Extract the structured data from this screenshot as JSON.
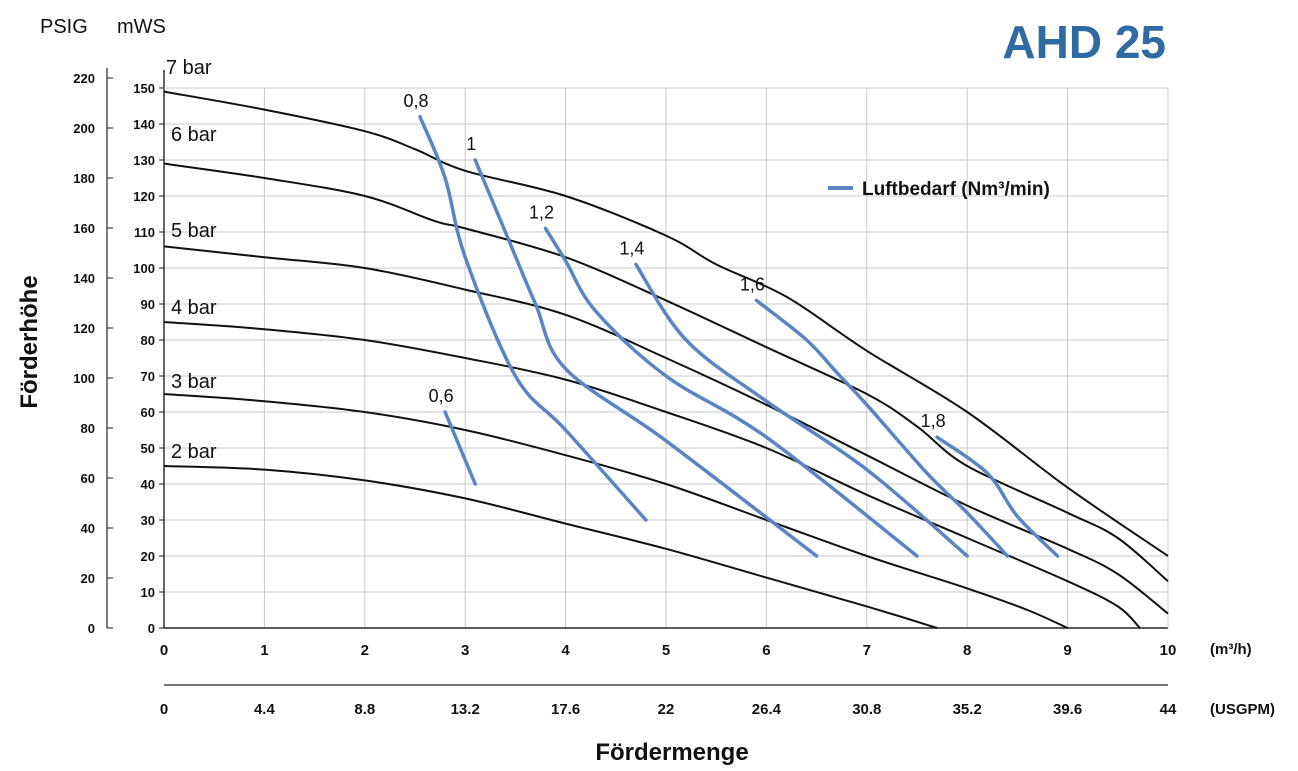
{
  "chart_data": {
    "type": "line",
    "title": "AHD 25",
    "xlabel": "Fördermenge",
    "ylabel": "Förderhöhe",
    "x_unit_label": "(m³/h)",
    "x2_unit_label": "(USGPM)",
    "y_unit_left": "PSIG",
    "y_unit_right": "mWS",
    "xlim": [
      0,
      10
    ],
    "ylim": [
      0,
      150
    ],
    "grid": true,
    "legend_position": "top-right",
    "x_ticks": [
      "0",
      "1",
      "2",
      "3",
      "4",
      "5",
      "6",
      "7",
      "8",
      "9",
      "10"
    ],
    "x2_ticks": [
      "0",
      "4.4",
      "8.8",
      "13.2",
      "17.6",
      "22",
      "26.4",
      "30.8",
      "35.2",
      "39.6",
      "44"
    ],
    "y_ticks_mws": [
      "0",
      "10",
      "20",
      "30",
      "40",
      "50",
      "60",
      "70",
      "80",
      "90",
      "100",
      "110",
      "120",
      "130",
      "140",
      "150"
    ],
    "y_ticks_psig": [
      "0",
      "20",
      "40",
      "60",
      "80",
      "100",
      "120",
      "140",
      "160",
      "180",
      "200",
      "220"
    ],
    "legend": {
      "label": "Luftbedarf (Nm³/min)",
      "color": "#5b84c4"
    },
    "series": [
      {
        "name": "7 bar",
        "points": [
          [
            0,
            149
          ],
          [
            1,
            144
          ],
          [
            2,
            138
          ],
          [
            2.5,
            133
          ],
          [
            3,
            127
          ],
          [
            4,
            120
          ],
          [
            5,
            109
          ],
          [
            5.5,
            101
          ],
          [
            6.2,
            92
          ],
          [
            7,
            77
          ],
          [
            8,
            60
          ],
          [
            9,
            39
          ],
          [
            10,
            20
          ]
        ]
      },
      {
        "name": "6 bar",
        "points": [
          [
            0,
            129
          ],
          [
            1,
            125
          ],
          [
            2,
            120
          ],
          [
            2.7,
            113
          ],
          [
            3,
            111
          ],
          [
            4,
            103
          ],
          [
            5,
            91
          ],
          [
            6,
            78
          ],
          [
            7,
            65
          ],
          [
            7.5,
            56
          ],
          [
            8,
            45
          ],
          [
            9,
            32
          ],
          [
            9.5,
            25
          ],
          [
            10,
            13
          ]
        ]
      },
      {
        "name": "5 bar",
        "points": [
          [
            0,
            106
          ],
          [
            1,
            103
          ],
          [
            2,
            100
          ],
          [
            3,
            94
          ],
          [
            4,
            87
          ],
          [
            5,
            75
          ],
          [
            6,
            62
          ],
          [
            7,
            48
          ],
          [
            8,
            34
          ],
          [
            9,
            22
          ],
          [
            9.5,
            15
          ],
          [
            10,
            4
          ]
        ]
      },
      {
        "name": "4 bar",
        "points": [
          [
            0,
            85
          ],
          [
            1,
            83
          ],
          [
            2,
            80
          ],
          [
            3,
            75
          ],
          [
            4,
            69
          ],
          [
            5,
            60
          ],
          [
            6,
            50
          ],
          [
            7,
            37
          ],
          [
            8,
            25
          ],
          [
            9,
            13
          ],
          [
            9.5,
            6
          ],
          [
            9.72,
            0
          ]
        ]
      },
      {
        "name": "3 bar",
        "points": [
          [
            0,
            65
          ],
          [
            1,
            63
          ],
          [
            2,
            60
          ],
          [
            3,
            55
          ],
          [
            4,
            48
          ],
          [
            5,
            40
          ],
          [
            6,
            30
          ],
          [
            7,
            20
          ],
          [
            8,
            11
          ],
          [
            8.6,
            5
          ],
          [
            9,
            0
          ]
        ]
      },
      {
        "name": "2 bar",
        "points": [
          [
            0,
            45
          ],
          [
            1,
            44
          ],
          [
            2,
            41
          ],
          [
            3,
            36
          ],
          [
            4,
            29
          ],
          [
            5,
            22
          ],
          [
            6,
            14
          ],
          [
            7,
            6
          ],
          [
            7.7,
            0
          ]
        ]
      }
    ],
    "air_series": [
      {
        "name": "0,6",
        "points": [
          [
            2.8,
            60
          ],
          [
            3.1,
            40
          ]
        ]
      },
      {
        "name": "0,8",
        "points": [
          [
            2.55,
            142
          ],
          [
            2.8,
            125
          ],
          [
            3.0,
            103
          ],
          [
            3.5,
            70
          ],
          [
            4,
            55
          ],
          [
            4.8,
            30
          ]
        ]
      },
      {
        "name": "1",
        "points": [
          [
            3.1,
            130
          ],
          [
            3.4,
            110
          ],
          [
            3.7,
            90
          ],
          [
            4,
            72
          ],
          [
            5,
            52
          ],
          [
            6.5,
            20
          ]
        ]
      },
      {
        "name": "1,2",
        "points": [
          [
            3.8,
            111
          ],
          [
            4,
            102
          ],
          [
            4.3,
            88
          ],
          [
            5,
            70
          ],
          [
            6,
            53
          ],
          [
            7.5,
            20
          ]
        ]
      },
      {
        "name": "1,4",
        "points": [
          [
            4.7,
            101
          ],
          [
            5.2,
            80
          ],
          [
            6,
            63
          ],
          [
            7,
            44
          ],
          [
            8,
            20
          ]
        ]
      },
      {
        "name": "1,6",
        "points": [
          [
            5.9,
            91
          ],
          [
            6.4,
            80
          ],
          [
            6.7,
            71
          ],
          [
            7,
            62
          ],
          [
            7.6,
            43
          ],
          [
            8,
            32
          ],
          [
            8.4,
            20
          ]
        ]
      },
      {
        "name": "1,8",
        "points": [
          [
            7.7,
            53
          ],
          [
            8.2,
            43
          ],
          [
            8.5,
            31
          ],
          [
            8.9,
            20
          ]
        ]
      }
    ]
  }
}
